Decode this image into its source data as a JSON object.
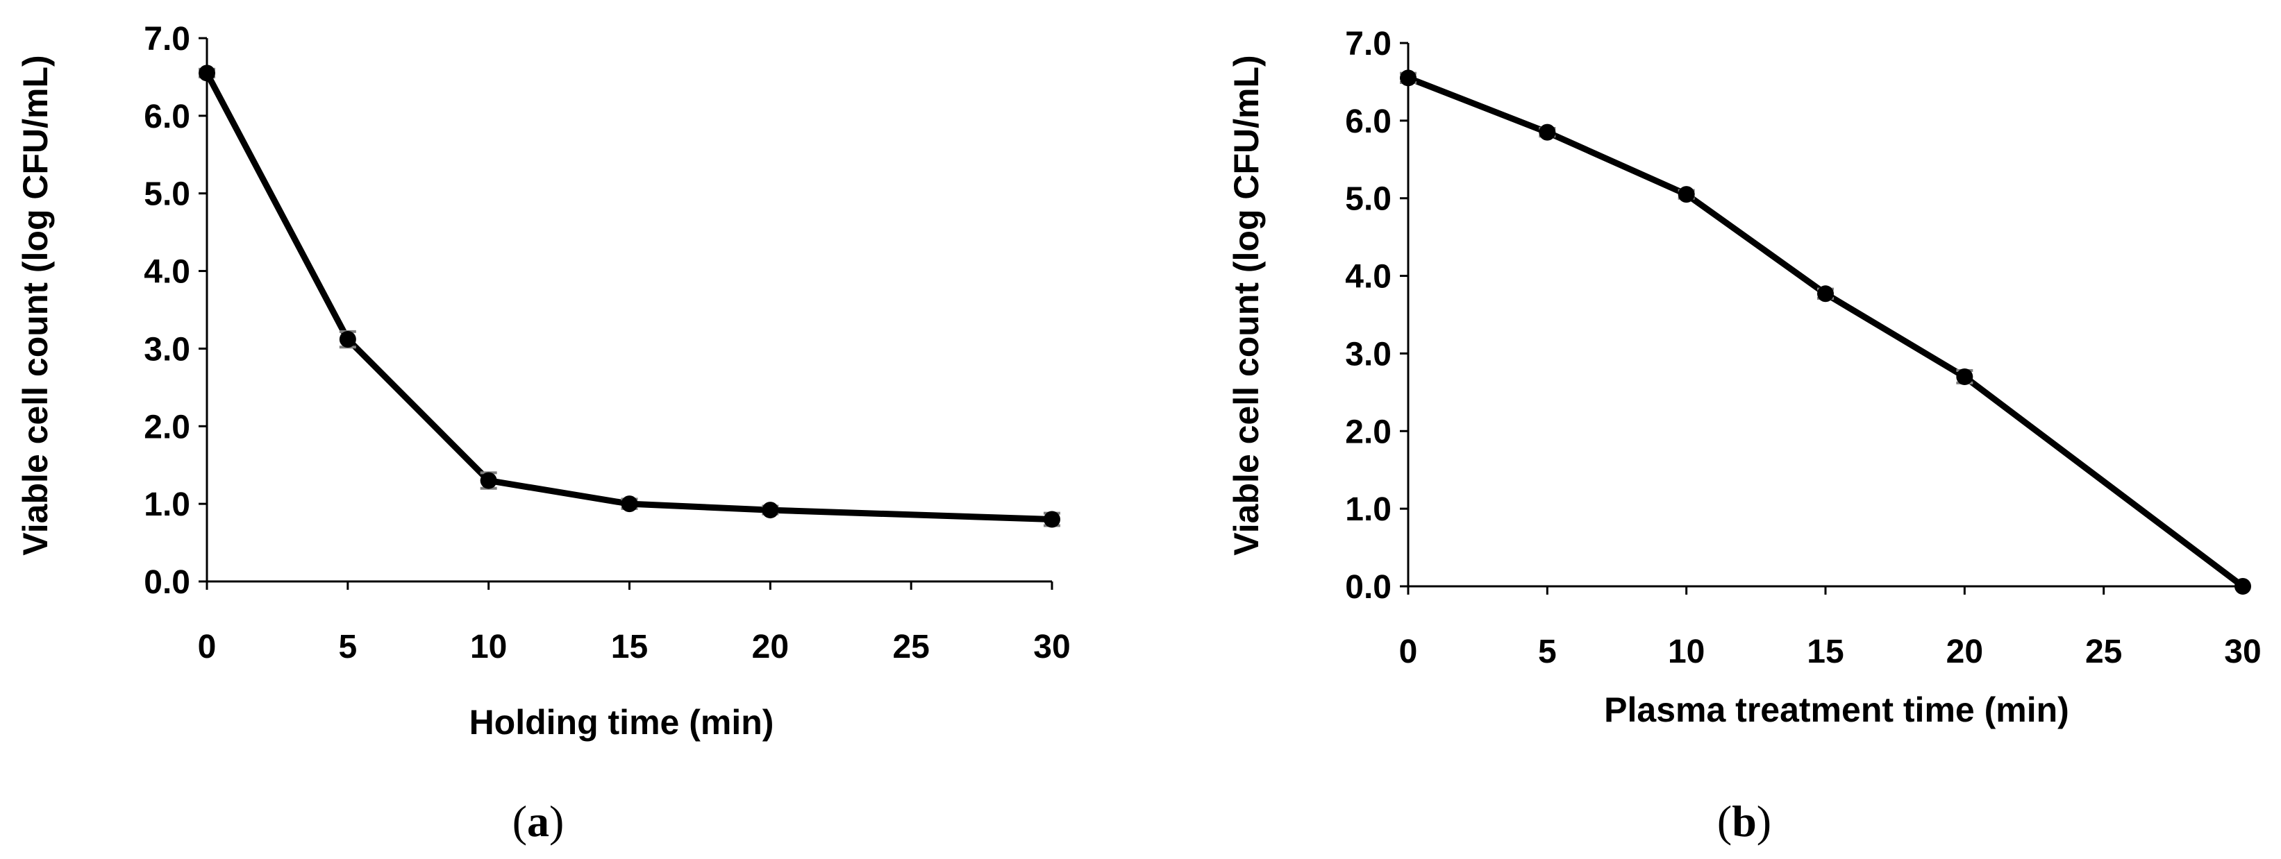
{
  "chart_data": [
    {
      "type": "line",
      "panel_label": "a",
      "xlabel": "Holding time (min)",
      "ylabel": "Viable cell count (log CFU/mL)",
      "x_tick_labels": [
        "0",
        "5",
        "10",
        "15",
        "20",
        "25",
        "30"
      ],
      "y_tick_labels": [
        "0.0",
        "1.0",
        "2.0",
        "3.0",
        "4.0",
        "5.0",
        "6.0",
        "7.0"
      ],
      "xlim": [
        0,
        30
      ],
      "ylim": [
        0,
        7
      ],
      "grid": false,
      "series": [
        {
          "x": [
            0,
            5,
            10,
            15,
            20,
            30
          ],
          "y": [
            6.55,
            3.12,
            1.3,
            1.0,
            0.92,
            0.8
          ],
          "error": [
            0.05,
            0.1,
            0.1,
            0.06,
            0.05,
            0.08
          ],
          "color": "#000000"
        }
      ]
    },
    {
      "type": "line",
      "panel_label": "b",
      "xlabel": "Plasma treatment time (min)",
      "ylabel": "Viable cell count (log CFU/mL)",
      "x_tick_labels": [
        "0",
        "5",
        "10",
        "15",
        "20",
        "25",
        "30"
      ],
      "y_tick_labels": [
        "0.0",
        "1.0",
        "2.0",
        "3.0",
        "4.0",
        "5.0",
        "6.0",
        "7.0"
      ],
      "xlim": [
        0,
        30
      ],
      "ylim": [
        0,
        7
      ],
      "grid": false,
      "series": [
        {
          "x": [
            0,
            5,
            10,
            15,
            20,
            30
          ],
          "y": [
            6.55,
            5.85,
            5.05,
            3.77,
            2.7,
            0.0
          ],
          "error": [
            0.06,
            0.05,
            0.05,
            0.06,
            0.08,
            0.0
          ],
          "color": "#000000"
        }
      ]
    }
  ]
}
